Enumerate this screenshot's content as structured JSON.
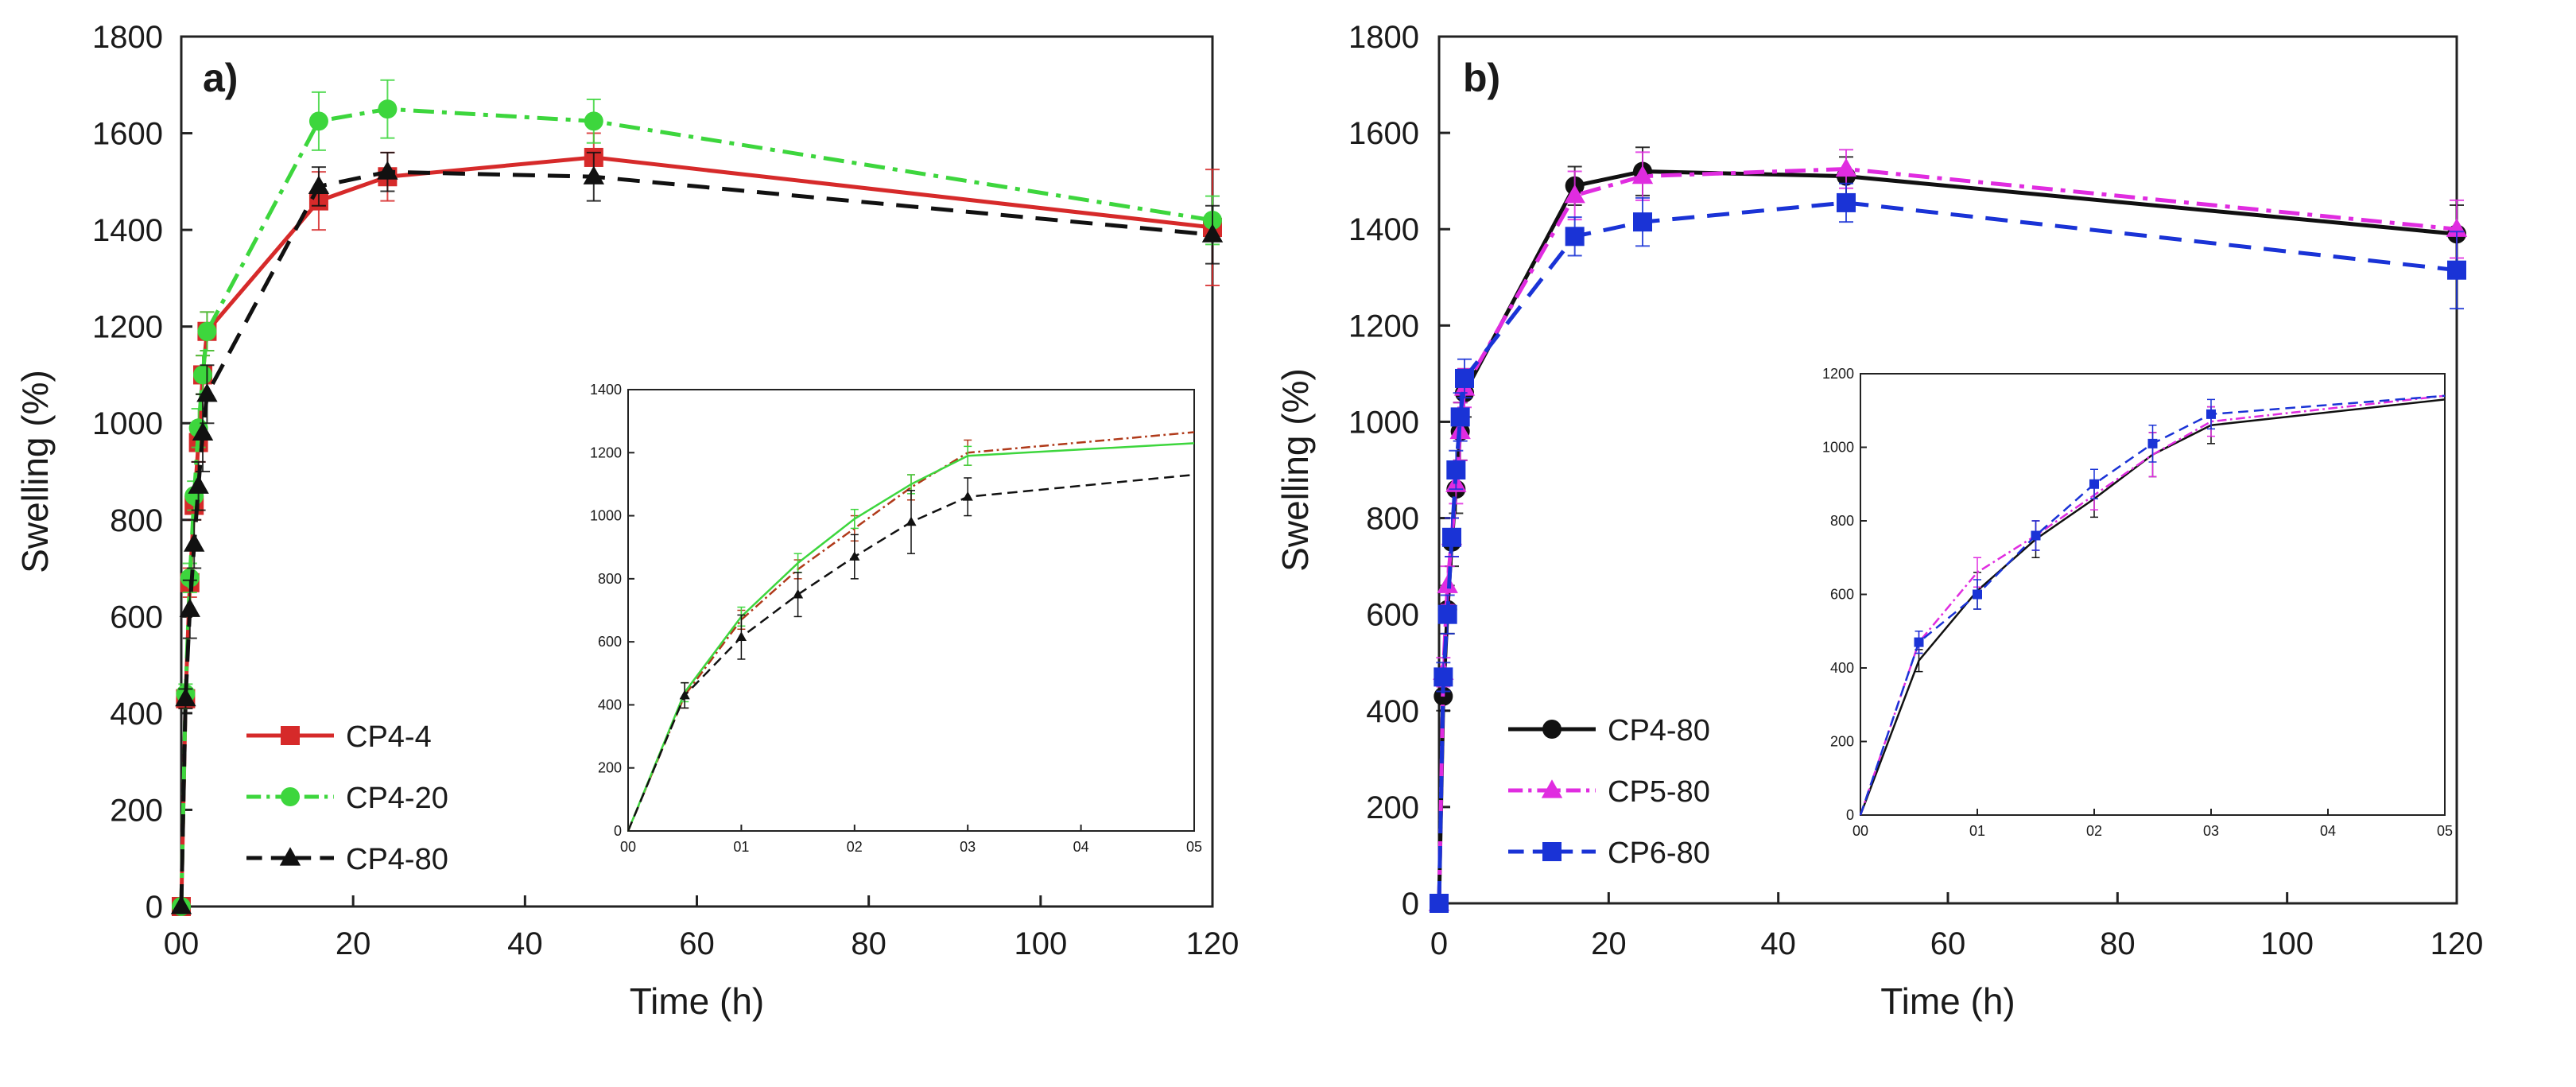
{
  "figure": {
    "description_labels": [
      "a)",
      "b)"
    ]
  },
  "chart_data": [
    {
      "type": "line",
      "panel_label": "a)",
      "xlabel": "Time (h)",
      "ylabel": "Swelling (%)",
      "xlim": [
        0,
        120
      ],
      "ylim": [
        0,
        1800
      ],
      "xticks": [
        "00",
        "20",
        "40",
        "60",
        "80",
        "100",
        "120"
      ],
      "yticks": [
        "0",
        "200",
        "400",
        "600",
        "800",
        "1000",
        "1200",
        "1400",
        "1600",
        "1800"
      ],
      "series": [
        {
          "name": "CP4-4",
          "color": "#d62a2a",
          "marker": "square",
          "dash": "solid",
          "x": [
            0,
            0.5,
            1,
            1.5,
            2,
            2.5,
            3,
            16,
            24,
            48,
            120
          ],
          "y": [
            0,
            430,
            670,
            830,
            960,
            1100,
            1190,
            1460,
            1510,
            1550,
            1405
          ],
          "err": [
            0,
            20,
            30,
            30,
            40,
            40,
            40,
            60,
            50,
            50,
            120
          ]
        },
        {
          "name": "CP4-20",
          "color": "#3dd63d",
          "marker": "circle",
          "dash": "dashdot",
          "x": [
            0,
            0.5,
            1,
            1.5,
            2,
            2.5,
            3,
            16,
            24,
            48,
            120
          ],
          "y": [
            0,
            440,
            680,
            850,
            990,
            1100,
            1190,
            1625,
            1650,
            1625,
            1420
          ],
          "err": [
            0,
            20,
            30,
            30,
            40,
            40,
            40,
            60,
            60,
            45,
            50
          ]
        },
        {
          "name": "CP4-80",
          "color": "#111111",
          "marker": "triangle",
          "dash": "dashed",
          "x": [
            0,
            0.5,
            1,
            1.5,
            2,
            2.5,
            3,
            16,
            24,
            48,
            120
          ],
          "y": [
            0,
            430,
            615,
            750,
            870,
            980,
            1060,
            1490,
            1520,
            1510,
            1390
          ],
          "err": [
            0,
            20,
            60,
            50,
            50,
            80,
            60,
            40,
            40,
            50,
            60
          ]
        }
      ],
      "legend_position": "bottom-left",
      "inset": {
        "xticks": [
          "00",
          "01",
          "02",
          "03",
          "04",
          "05"
        ],
        "xlim": [
          0,
          5
        ],
        "yticks": [
          "0",
          "200",
          "400",
          "600",
          "800",
          "1000",
          "1200",
          "1400"
        ],
        "ylim": [
          0,
          1400
        ],
        "series": [
          {
            "name": "CP4-4",
            "color": "#b03a1a",
            "dash": "dashdot",
            "x": [
              0,
              0.5,
              1,
              1.5,
              2,
              2.5,
              3,
              5
            ],
            "y": [
              0,
              430,
              670,
              830,
              960,
              1090,
              1200,
              1265
            ],
            "err": [
              0,
              40,
              30,
              30,
              40,
              40,
              40,
              0
            ]
          },
          {
            "name": "CP4-20",
            "color": "#3dd63d",
            "dash": "solid",
            "x": [
              0,
              0.5,
              1,
              1.5,
              2,
              2.5,
              3,
              5
            ],
            "y": [
              0,
              440,
              680,
              850,
              990,
              1100,
              1190,
              1230
            ],
            "err": [
              0,
              30,
              30,
              30,
              30,
              30,
              30,
              0
            ]
          },
          {
            "name": "CP4-80",
            "color": "#111111",
            "dash": "dashed",
            "marker": "triangle",
            "x": [
              0,
              0.5,
              1,
              1.5,
              2,
              2.5,
              3,
              5
            ],
            "y": [
              0,
              430,
              615,
              750,
              870,
              980,
              1060,
              1130
            ],
            "err": [
              0,
              40,
              70,
              70,
              70,
              100,
              60,
              0
            ]
          }
        ]
      }
    },
    {
      "type": "line",
      "panel_label": "b)",
      "xlabel": "Time (h)",
      "ylabel": "Swelling (%)",
      "xlim": [
        0,
        120
      ],
      "ylim": [
        0,
        1800
      ],
      "xticks": [
        "0",
        "20",
        "40",
        "60",
        "80",
        "100",
        "120"
      ],
      "yticks": [
        "0",
        "200",
        "400",
        "600",
        "800",
        "1000",
        "1200",
        "1400",
        "1600",
        "1800"
      ],
      "series": [
        {
          "name": "CP4-80",
          "color": "#111111",
          "marker": "circle",
          "dash": "solid",
          "x": [
            0,
            0.5,
            1,
            1.5,
            2,
            2.5,
            3,
            16,
            24,
            48,
            120
          ],
          "y": [
            0,
            430,
            610,
            750,
            860,
            980,
            1060,
            1490,
            1520,
            1510,
            1390
          ],
          "err": [
            0,
            30,
            50,
            50,
            50,
            60,
            50,
            40,
            50,
            40,
            60
          ]
        },
        {
          "name": "CP5-80",
          "color": "#e02ce0",
          "marker": "triangle",
          "dash": "dashdot",
          "x": [
            0,
            0.5,
            1,
            1.5,
            2,
            2.5,
            3,
            16,
            24,
            48,
            120
          ],
          "y": [
            0,
            480,
            660,
            760,
            870,
            980,
            1070,
            1470,
            1510,
            1525,
            1400
          ],
          "err": [
            0,
            30,
            40,
            40,
            40,
            60,
            40,
            50,
            50,
            40,
            60
          ]
        },
        {
          "name": "CP6-80",
          "color": "#1a33d6",
          "marker": "square",
          "dash": "dashed",
          "x": [
            0,
            0.5,
            1,
            1.5,
            2,
            2.5,
            3,
            16,
            24,
            48,
            120
          ],
          "y": [
            0,
            470,
            600,
            760,
            900,
            1010,
            1090,
            1385,
            1415,
            1455,
            1315
          ],
          "err": [
            0,
            30,
            40,
            40,
            40,
            50,
            40,
            40,
            50,
            40,
            80
          ]
        }
      ],
      "legend_position": "bottom-left",
      "inset": {
        "xticks": [
          "00",
          "01",
          "02",
          "03",
          "04",
          "05"
        ],
        "xlim": [
          0,
          5
        ],
        "yticks": [
          "0",
          "200",
          "400",
          "600",
          "800",
          "1000",
          "1200"
        ],
        "ylim": [
          0,
          1200
        ],
        "series": [
          {
            "name": "CP4-80",
            "color": "#111111",
            "dash": "solid",
            "x": [
              0,
              0.5,
              1,
              1.5,
              2,
              2.5,
              3,
              5
            ],
            "y": [
              0,
              420,
              610,
              750,
              860,
              980,
              1060,
              1130
            ],
            "err": [
              0,
              30,
              50,
              50,
              50,
              60,
              50,
              0
            ]
          },
          {
            "name": "CP5-80",
            "color": "#e02ce0",
            "dash": "dashdot",
            "x": [
              0,
              0.5,
              1,
              1.5,
              2,
              2.5,
              3,
              5
            ],
            "y": [
              0,
              470,
              660,
              760,
              870,
              980,
              1070,
              1140
            ],
            "err": [
              0,
              30,
              40,
              40,
              40,
              60,
              40,
              0
            ]
          },
          {
            "name": "CP6-80",
            "color": "#1a33d6",
            "dash": "dashed",
            "marker": "square",
            "x": [
              0,
              0.5,
              1,
              1.5,
              2,
              2.5,
              3,
              5
            ],
            "y": [
              0,
              470,
              600,
              760,
              900,
              1010,
              1090,
              1140
            ],
            "err": [
              0,
              30,
              40,
              40,
              40,
              50,
              40,
              0
            ]
          }
        ]
      }
    }
  ]
}
